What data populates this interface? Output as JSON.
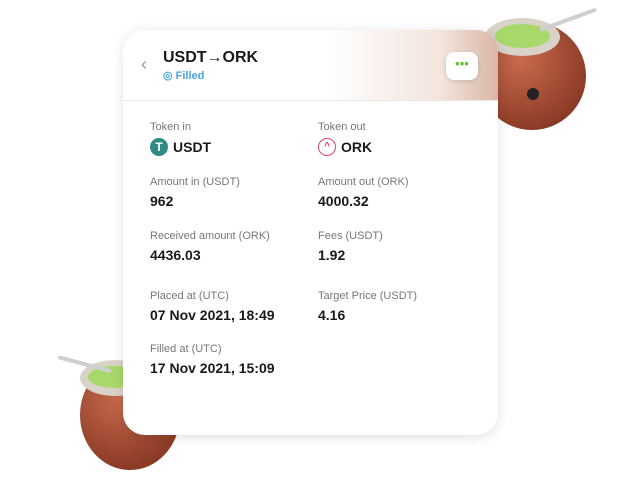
{
  "header": {
    "title": "USDT→ORK",
    "status": "Filled",
    "back_icon": "chevron-left-icon",
    "more_icon": "more-icon"
  },
  "fields": [
    {
      "label": "Token in",
      "value": "USDT",
      "icon": "tether-icon"
    },
    {
      "label": "Token out",
      "value": "ORK",
      "icon": "ork-icon"
    },
    {
      "label": "Amount in (USDT)",
      "value": "962"
    },
    {
      "label": "Amount out (ORK)",
      "value": "4000.32"
    },
    {
      "label": "Received amount (ORK)",
      "value": "4436.03"
    },
    {
      "label": "Fees (USDT)",
      "value": "1.92"
    },
    {
      "label": "Placed at (UTC)",
      "value": "07 Nov 2021, 18:49"
    },
    {
      "label": "Target Price (USDT)",
      "value": "4.16"
    },
    {
      "label": "Filled at (UTC)",
      "value": "17 Nov 2021, 15:09"
    }
  ],
  "colors": {
    "status": "#4da3d9",
    "tether": "#2f8a83",
    "ork": "#e0456a"
  }
}
